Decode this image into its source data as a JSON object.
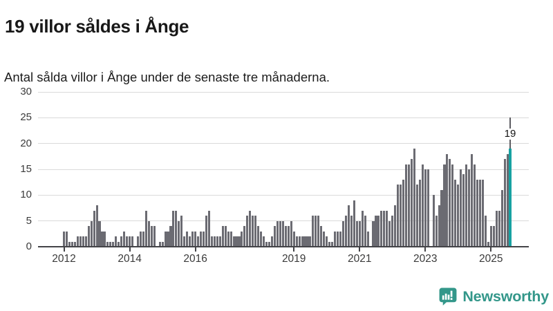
{
  "header": {
    "title": "19 villor såldes i Ånge",
    "subtitle": "Antal sålda villor i Ånge under de senaste tre månaderna."
  },
  "chart_data": {
    "type": "bar",
    "title": "19 villor såldes i Ånge",
    "subtitle": "Antal sålda villor i Ånge under de senaste tre månaderna.",
    "frequency": "monthly",
    "start_month": "2012-01",
    "end_month": "2025-08",
    "values": [
      3,
      3,
      1,
      1,
      1,
      2,
      2,
      2,
      2,
      4,
      5,
      7,
      8,
      5,
      3,
      3,
      1,
      1,
      1,
      2,
      1,
      2,
      3,
      2,
      2,
      2,
      0,
      2,
      3,
      3,
      7,
      5,
      4,
      4,
      0,
      1,
      1,
      3,
      3,
      4,
      7,
      7,
      5,
      6,
      2,
      3,
      2,
      3,
      3,
      2,
      3,
      3,
      6,
      7,
      2,
      2,
      2,
      2,
      4,
      4,
      3,
      3,
      2,
      2,
      2,
      3,
      4,
      6,
      7,
      6,
      6,
      4,
      3,
      2,
      1,
      1,
      2,
      4,
      5,
      5,
      5,
      4,
      4,
      5,
      3,
      2,
      2,
      2,
      2,
      2,
      2,
      6,
      6,
      6,
      4,
      3,
      2,
      1,
      1,
      3,
      3,
      3,
      5,
      6,
      8,
      6,
      9,
      5,
      5,
      7,
      6,
      3,
      0,
      5,
      6,
      6,
      7,
      7,
      7,
      5,
      6,
      8,
      12,
      12,
      13,
      16,
      16,
      17,
      19,
      12,
      13,
      16,
      15,
      15,
      0,
      10,
      6,
      8,
      11,
      16,
      18,
      17,
      16,
      13,
      12,
      15,
      14,
      16,
      15,
      18,
      16,
      13,
      13,
      13,
      6,
      1,
      4,
      4,
      7,
      7,
      11,
      17,
      18,
      19
    ],
    "highlight": {
      "index": 163,
      "value": 19,
      "label": "19"
    },
    "ylim": [
      0,
      30
    ],
    "y_ticks": [
      0,
      5,
      10,
      15,
      20,
      25,
      30
    ],
    "x_ticks": [
      {
        "label": "2012",
        "month_index": 0
      },
      {
        "label": "2014",
        "month_index": 24
      },
      {
        "label": "2016",
        "month_index": 48
      },
      {
        "label": "2019",
        "month_index": 84
      },
      {
        "label": "2021",
        "month_index": 108
      },
      {
        "label": "2023",
        "month_index": 132
      },
      {
        "label": "2025",
        "month_index": 156
      }
    ],
    "grid": true,
    "legend": false,
    "xlabel": "",
    "ylabel": "",
    "bar_color": "#6b6b72",
    "highlight_color": "#17a2a2",
    "axis_color": "#434347",
    "grid_color": "#dadada"
  },
  "branding": {
    "logo_text": "Newsworthy",
    "logo_color": "#33978a",
    "logo_icon": "bar-chart-speech-bubble-icon"
  }
}
